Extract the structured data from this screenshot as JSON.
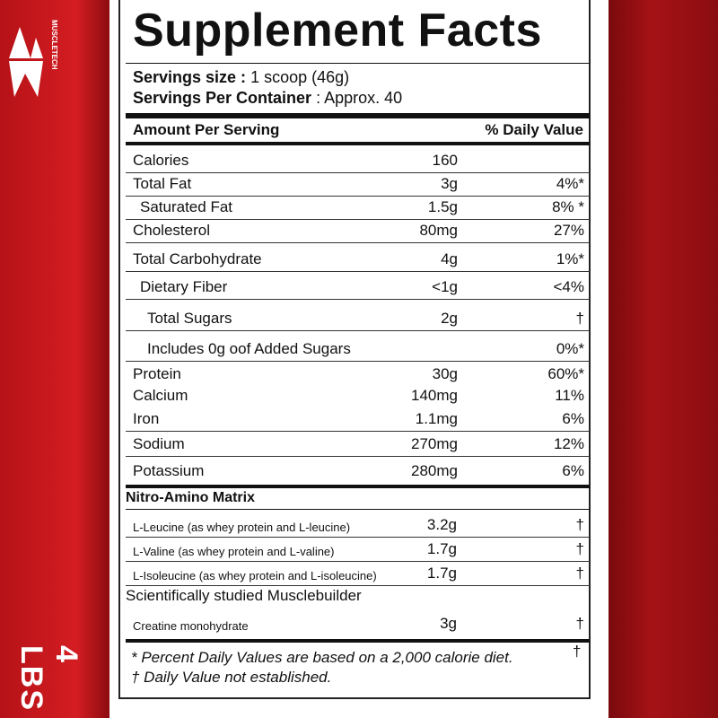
{
  "header": {
    "brand": "MUSCLETECH",
    "weight": "4 LBS"
  },
  "label": {
    "title": "Supplement Facts",
    "serving_size": {
      "label": "Servings size :",
      "value": "1 scoop (46g)"
    },
    "servings_per_container": {
      "label": "Servings Per Container",
      "value": ": Approx. 40"
    },
    "columns": [
      "Amount Per Serving",
      "% Daily Value"
    ],
    "rows": [
      {
        "name": "Calories",
        "amount": "160"
      },
      {
        "name": "Total Fat",
        "amount": "3g",
        "dv": "4%*"
      },
      {
        "name": "Saturated Fat",
        "amount": "1.5g",
        "dv": "8% *"
      },
      {
        "name": "Cholesterol",
        "amount": "80mg",
        "dv": "27%"
      },
      {
        "name": "Total Carbohydrate",
        "amount": "4g",
        "dv": "1%*"
      },
      {
        "name": "Dietary Fiber",
        "amount": "<1g",
        "dv": "<4%"
      },
      {
        "name": "Total Sugars",
        "amount": "2g",
        "dv": "†"
      },
      {
        "name": "Includes 0g oof Added Sugars",
        "dv": "0%*"
      },
      {
        "name": "Protein",
        "amount": "30g",
        "dv": "60%*"
      },
      {
        "name": "Calcium",
        "amount": "140mg",
        "dv": "11%"
      },
      {
        "name": "Iron",
        "amount": "1.1mg",
        "dv": "6%"
      },
      {
        "name": "Sodium",
        "amount": "270mg",
        "dv": "12%"
      },
      {
        "name": "Potassium",
        "amount": "280mg",
        "dv": "6%"
      }
    ],
    "matrix": {
      "title": "Nitro-Amino Matrix",
      "rows": [
        {
          "name": "L-Leucine (as whey protein and  L-leucine)",
          "amount": "3.2g",
          "dv": "†"
        },
        {
          "name": "L-Valine (as whey protein and L-valine)",
          "amount": "1.7g",
          "dv": "†"
        },
        {
          "name": "L-Isoleucine (as whey protein and L-isoleucine)",
          "amount": "1.7g",
          "dv": "†"
        }
      ]
    },
    "builder": {
      "title": "Scientifically studied Musclebuilder",
      "rows": [
        {
          "name": "Creatine monohydrate",
          "amount": "3g",
          "dv": "†"
        }
      ]
    },
    "footnotes": [
      "* Percent Daily Values are based on a 2,000 calorie diet.",
      "†",
      "† Daily Value not established."
    ]
  }
}
